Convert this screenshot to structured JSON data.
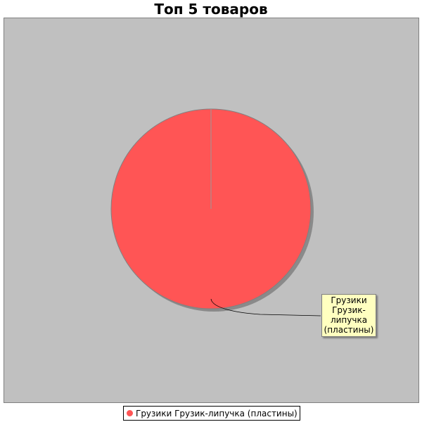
{
  "chart_data": {
    "type": "pie",
    "title": "Топ 5 товаров",
    "categories": [
      "Грузики Грузик-липучка (пластины)"
    ],
    "values": [
      100
    ],
    "colors": [
      "#ff5555"
    ],
    "legend": "bottom",
    "background": "#c0c0c0",
    "slice_label": "Грузики Грузик-липучка (пластины)"
  }
}
